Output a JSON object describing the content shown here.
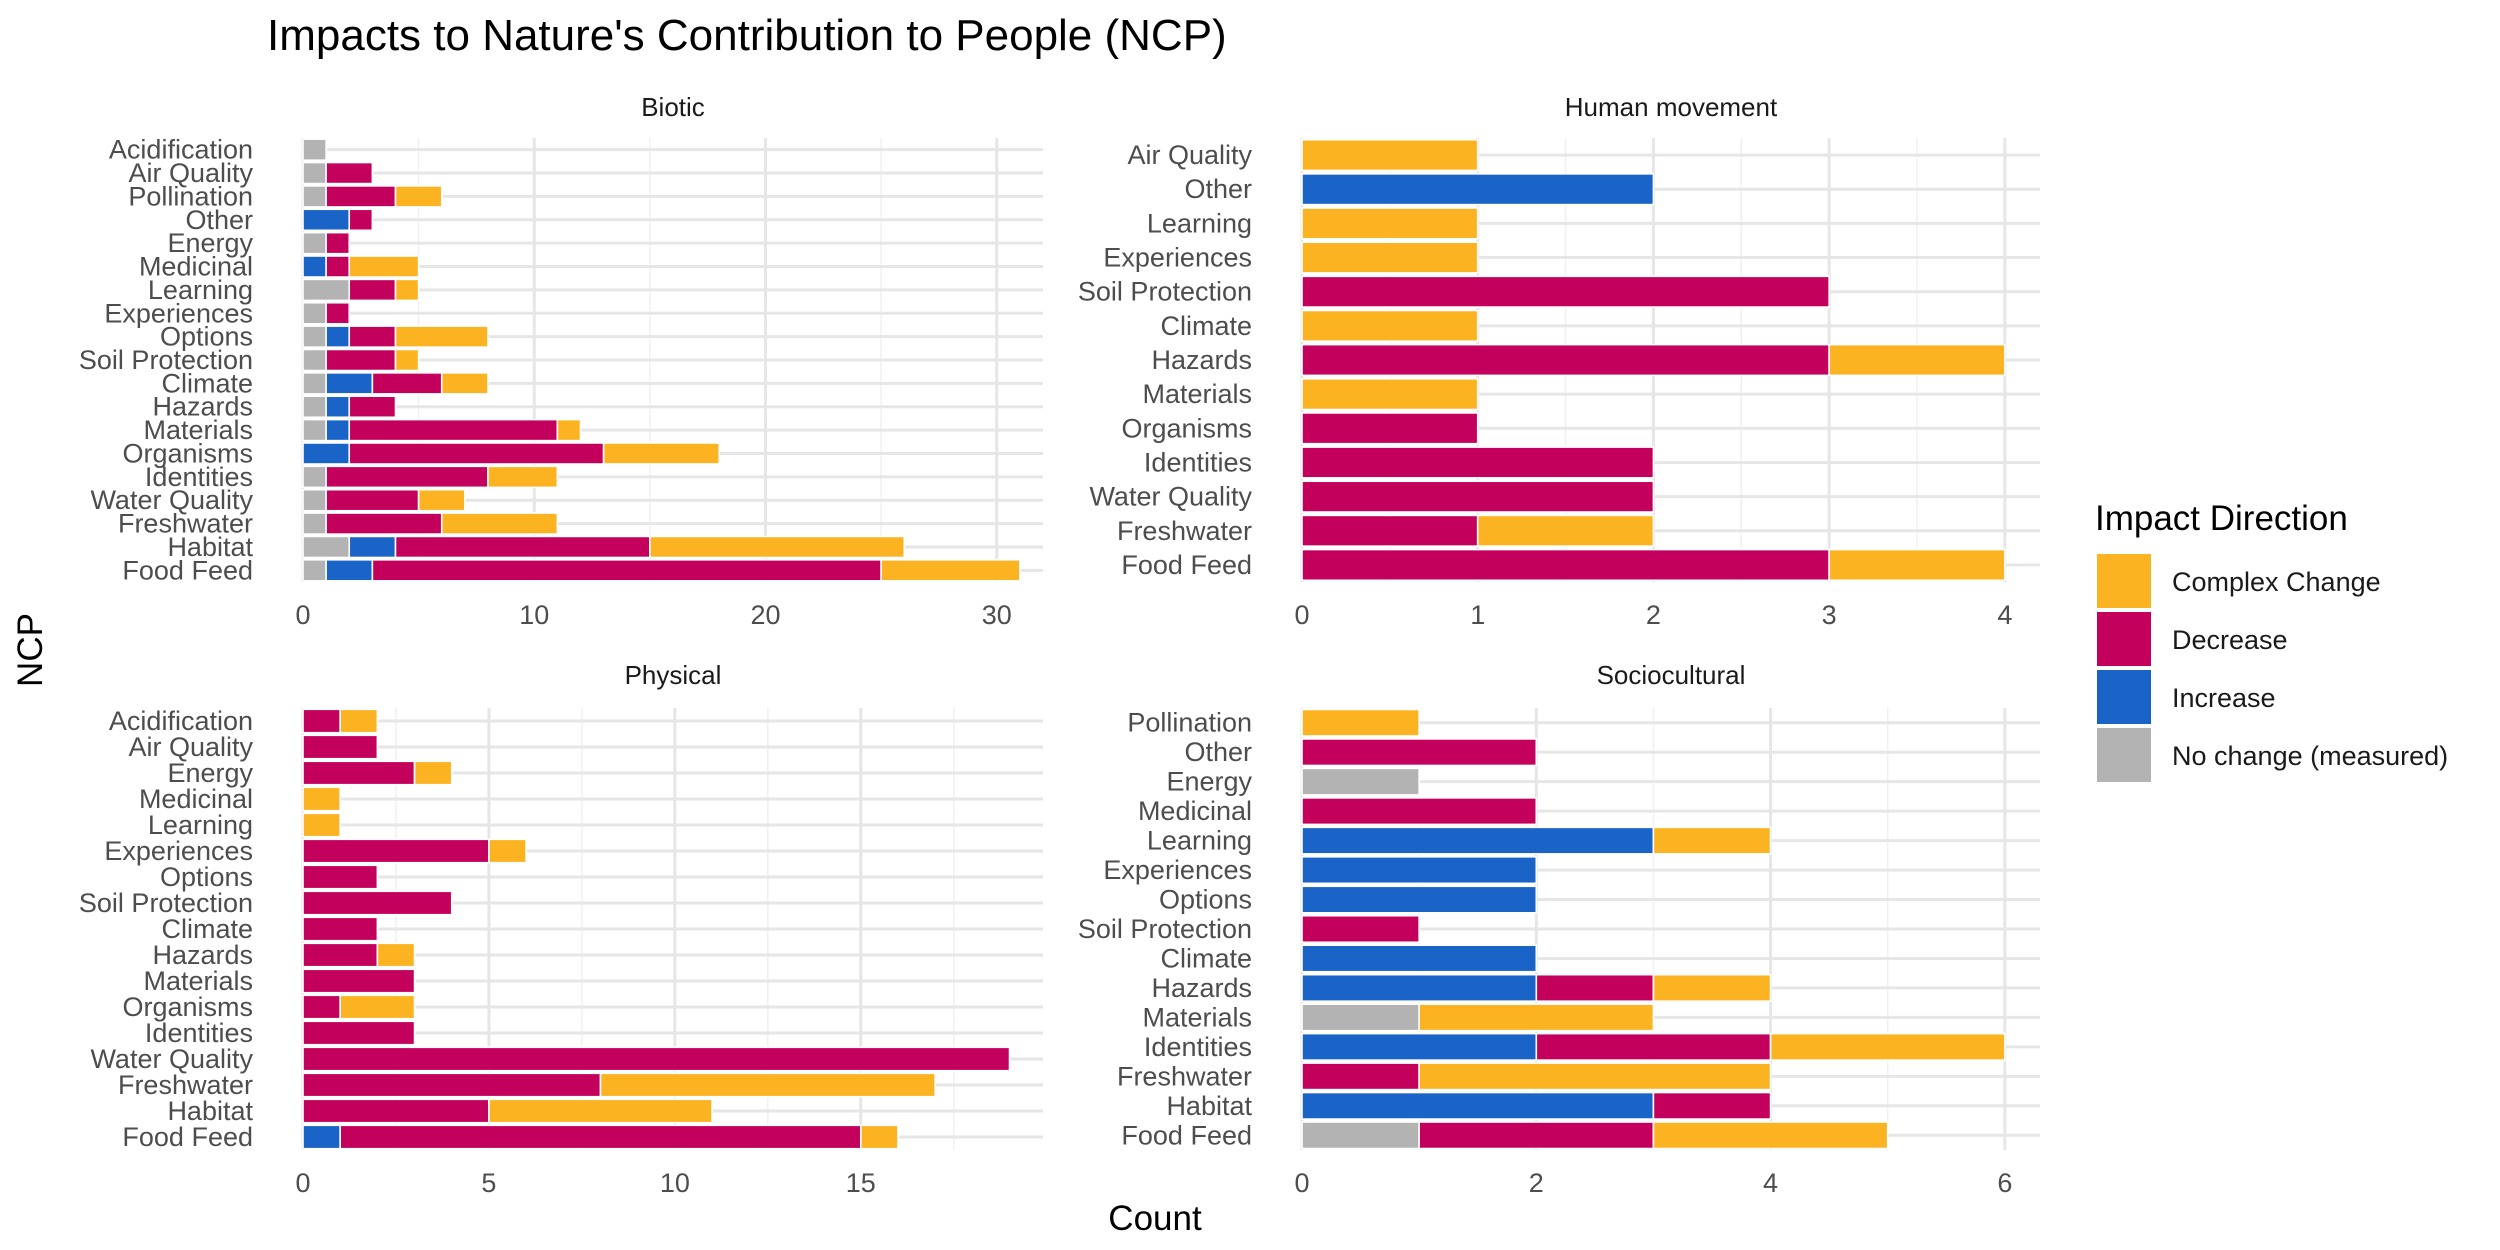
{
  "chart_data": {
    "type": "bar",
    "orientation": "horizontal",
    "stacked": true,
    "title": "Impacts to Nature's Contribution to People (NCP)",
    "xlabel": "Count",
    "ylabel": "NCP",
    "grid": true,
    "legend": {
      "title": "Impact Direction",
      "position": "right",
      "items": [
        {
          "name": "Complex Change",
          "color": "#FBB322"
        },
        {
          "name": "Decrease",
          "color": "#C3005C"
        },
        {
          "name": "Increase",
          "color": "#1A63C7"
        },
        {
          "name": "No change (measured)",
          "color": "#B3B3B3"
        }
      ]
    },
    "stack_order": [
      "No change (measured)",
      "Increase",
      "Decrease",
      "Complex Change"
    ],
    "panels": [
      {
        "title": "Biotic",
        "xlim": [
          0,
          32
        ],
        "xticks": [
          0,
          10,
          20,
          30
        ],
        "categories": [
          "Acidification",
          "Air Quality",
          "Pollination",
          "Other",
          "Energy",
          "Medicinal",
          "Learning",
          "Experiences",
          "Options",
          "Soil Protection",
          "Climate",
          "Hazards",
          "Materials",
          "Organisms",
          "Identities",
          "Water Quality",
          "Freshwater",
          "Habitat",
          "Food Feed"
        ],
        "series": [
          {
            "name": "No change (measured)",
            "values": [
              1,
              1,
              1,
              0,
              1,
              0,
              2,
              1,
              1,
              1,
              1,
              1,
              1,
              0,
              1,
              1,
              1,
              2,
              1
            ]
          },
          {
            "name": "Increase",
            "values": [
              0,
              0,
              0,
              2,
              0,
              1,
              0,
              0,
              1,
              0,
              2,
              1,
              1,
              2,
              0,
              0,
              0,
              2,
              2
            ]
          },
          {
            "name": "Decrease",
            "values": [
              0,
              2,
              3,
              1,
              1,
              1,
              2,
              1,
              2,
              3,
              3,
              2,
              9,
              11,
              7,
              4,
              5,
              11,
              22
            ]
          },
          {
            "name": "Complex Change",
            "values": [
              0,
              0,
              2,
              0,
              0,
              3,
              1,
              0,
              4,
              1,
              2,
              0,
              1,
              5,
              3,
              2,
              5,
              11,
              6
            ]
          }
        ]
      },
      {
        "title": "Human movement",
        "xlim": [
          0,
          4.2
        ],
        "xticks": [
          0,
          1,
          2,
          3,
          4
        ],
        "categories": [
          "Air Quality",
          "Other",
          "Learning",
          "Experiences",
          "Soil Protection",
          "Climate",
          "Hazards",
          "Materials",
          "Organisms",
          "Identities",
          "Water Quality",
          "Freshwater",
          "Food Feed"
        ],
        "series": [
          {
            "name": "No change (measured)",
            "values": [
              0,
              0,
              0,
              0,
              0,
              0,
              0,
              0,
              0,
              0,
              0,
              0,
              0
            ]
          },
          {
            "name": "Increase",
            "values": [
              0,
              2,
              0,
              0,
              0,
              0,
              0,
              0,
              0,
              0,
              0,
              0,
              0
            ]
          },
          {
            "name": "Decrease",
            "values": [
              0,
              0,
              0,
              0,
              3,
              0,
              3,
              0,
              1,
              2,
              2,
              1,
              3
            ]
          },
          {
            "name": "Complex Change",
            "values": [
              1,
              0,
              1,
              1,
              0,
              1,
              1,
              1,
              0,
              0,
              0,
              1,
              1
            ]
          }
        ]
      },
      {
        "title": "Physical",
        "xlim": [
          0,
          19.9
        ],
        "xticks": [
          0,
          5,
          10,
          15
        ],
        "categories": [
          "Acidification",
          "Air Quality",
          "Energy",
          "Medicinal",
          "Learning",
          "Experiences",
          "Options",
          "Soil Protection",
          "Climate",
          "Hazards",
          "Materials",
          "Organisms",
          "Identities",
          "Water Quality",
          "Freshwater",
          "Habitat",
          "Food Feed"
        ],
        "series": [
          {
            "name": "No change (measured)",
            "values": [
              0,
              0,
              0,
              0,
              0,
              0,
              0,
              0,
              0,
              0,
              0,
              0,
              0,
              0,
              0,
              0,
              0
            ]
          },
          {
            "name": "Increase",
            "values": [
              0,
              0,
              0,
              0,
              0,
              0,
              0,
              0,
              0,
              0,
              0,
              0,
              0,
              0,
              0,
              0,
              1
            ]
          },
          {
            "name": "Decrease",
            "values": [
              1,
              2,
              3,
              0,
              0,
              5,
              2,
              4,
              2,
              2,
              3,
              1,
              3,
              19,
              8,
              5,
              14
            ]
          },
          {
            "name": "Complex Change",
            "values": [
              1,
              0,
              1,
              1,
              1,
              1,
              0,
              0,
              0,
              1,
              0,
              2,
              0,
              0,
              9,
              6,
              1
            ]
          }
        ]
      },
      {
        "title": "Sociocultural",
        "xlim": [
          0,
          6.3
        ],
        "xticks": [
          0,
          2,
          4,
          6
        ],
        "categories": [
          "Pollination",
          "Other",
          "Energy",
          "Medicinal",
          "Learning",
          "Experiences",
          "Options",
          "Soil Protection",
          "Climate",
          "Hazards",
          "Materials",
          "Identities",
          "Freshwater",
          "Habitat",
          "Food Feed"
        ],
        "series": [
          {
            "name": "No change (measured)",
            "values": [
              0,
              0,
              1,
              0,
              0,
              0,
              0,
              0,
              0,
              0,
              1,
              0,
              0,
              0,
              1
            ]
          },
          {
            "name": "Increase",
            "values": [
              0,
              0,
              0,
              0,
              3,
              2,
              2,
              0,
              2,
              2,
              0,
              2,
              0,
              3,
              0
            ]
          },
          {
            "name": "Decrease",
            "values": [
              0,
              2,
              0,
              2,
              0,
              0,
              0,
              1,
              0,
              1,
              0,
              2,
              1,
              1,
              2
            ]
          },
          {
            "name": "Complex Change",
            "values": [
              1,
              0,
              0,
              0,
              1,
              0,
              0,
              0,
              0,
              1,
              2,
              2,
              3,
              0,
              2
            ]
          }
        ]
      }
    ]
  }
}
